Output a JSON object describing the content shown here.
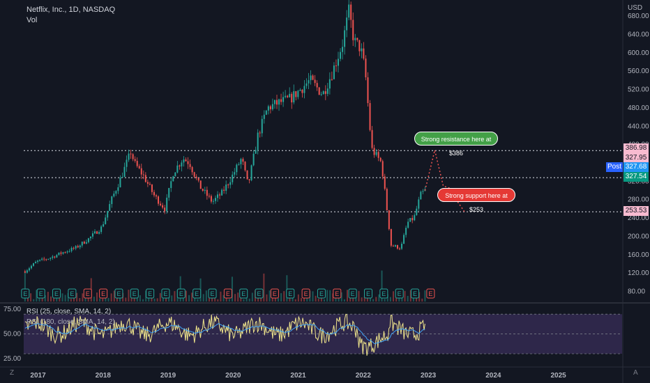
{
  "header": {
    "title": "Netflix, Inc., 1D, NASDAQ",
    "volume_label": "Vol",
    "currency": "USD"
  },
  "chart_data": [
    {
      "type": "line",
      "name": "price",
      "y_ticks": [
        "80.00",
        "120.00",
        "160.00",
        "200.00",
        "240.00",
        "280.00",
        "320.00",
        "360.00",
        "400.00",
        "440.00",
        "480.00",
        "520.00",
        "560.00",
        "600.00",
        "640.00",
        "680.00"
      ],
      "x_ticks": [
        "2017",
        "2018",
        "2019",
        "2020",
        "2021",
        "2022",
        "2023",
        "2024",
        "2025"
      ],
      "ylim": [
        58,
        703
      ],
      "xlim": [
        2016.8,
        2026.0
      ],
      "grid": false,
      "x": [
        2016.82,
        2017.0,
        2017.2,
        2017.4,
        2017.6,
        2017.8,
        2018.0,
        2018.15,
        2018.3,
        2018.45,
        2018.5,
        2018.65,
        2018.8,
        2018.97,
        2019.1,
        2019.25,
        2019.35,
        2019.5,
        2019.7,
        2019.85,
        2020.0,
        2020.15,
        2020.25,
        2020.4,
        2020.55,
        2020.7,
        2020.9,
        2021.05,
        2021.2,
        2021.4,
        2021.55,
        2021.7,
        2021.8,
        2021.88,
        2021.98,
        2022.05,
        2022.15,
        2022.3,
        2022.45,
        2022.6,
        2022.7,
        2022.8,
        2022.9,
        2022.97
      ],
      "values": [
        124,
        145,
        153,
        165,
        175,
        195,
        220,
        280,
        330,
        385,
        360,
        330,
        290,
        260,
        340,
        370,
        360,
        310,
        275,
        295,
        330,
        370,
        310,
        420,
        480,
        490,
        500,
        520,
        540,
        510,
        560,
        620,
        690,
        625,
        610,
        560,
        390,
        360,
        180,
        175,
        230,
        240,
        290,
        300
      ],
      "levels": [
        {
          "label": "386.98",
          "value": 386.98,
          "color": "#f8bbd0"
        },
        {
          "label": "327.95",
          "value": 327.95,
          "color": "#f8bbd0"
        },
        {
          "label": "327.68",
          "value": 327.68,
          "color": "#2196f3"
        },
        {
          "label": "327.54",
          "value": 327.54,
          "color": "#089981"
        },
        {
          "label": "253.53",
          "value": 253.53,
          "color": "#f8bbd0"
        }
      ],
      "post_label": "Post",
      "annotations": [
        {
          "text": "Strong resistance here at $386",
          "color": "#43a047"
        },
        {
          "text": "Strong support here at $253",
          "color": "#e53935"
        }
      ],
      "projection": {
        "x": [
          2022.97,
          2023.12,
          2023.25,
          2023.35,
          2023.45,
          2023.58
        ],
        "values": [
          300,
          388,
          310,
          305,
          280,
          253
        ]
      },
      "earnings_markers": 27,
      "earnings_label": "E"
    },
    {
      "type": "line",
      "name": "rsi",
      "title": "RSI (25, close, SMA, 14, 2)",
      "title2": "RSI (180, close, SMA, 14, 2)",
      "y_ticks": [
        "75.00",
        "50.00",
        "25.00"
      ],
      "ylim": [
        18,
        80
      ],
      "band": [
        30,
        70
      ],
      "mid": 50
    }
  ],
  "corner_left": "Z",
  "corner_right": "A",
  "colors": {
    "up": "#26a69a",
    "down": "#ef5350",
    "rsi": "#f0e68c",
    "rsi_ma": "#42a5f5"
  }
}
